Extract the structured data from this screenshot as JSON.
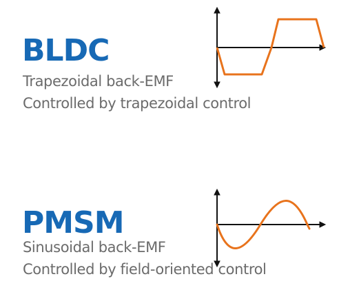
{
  "sections": [
    {
      "title": "BLDC",
      "line1": "Trapezoidal back-EMF",
      "line2": "Controlled by trapezoidal control",
      "waveform": "trapezoidal",
      "wave_color": "#e8731c"
    },
    {
      "title": "PMSM",
      "line1": "Sinusoidal back-EMF",
      "line2": "Controlled by field-oriented control",
      "waveform": "sinusoidal",
      "wave_color": "#e8731c"
    }
  ],
  "colors": {
    "title": "#1769b5",
    "text": "#6b6b6b",
    "axis": "#111111",
    "waveform": "#e8731c"
  }
}
